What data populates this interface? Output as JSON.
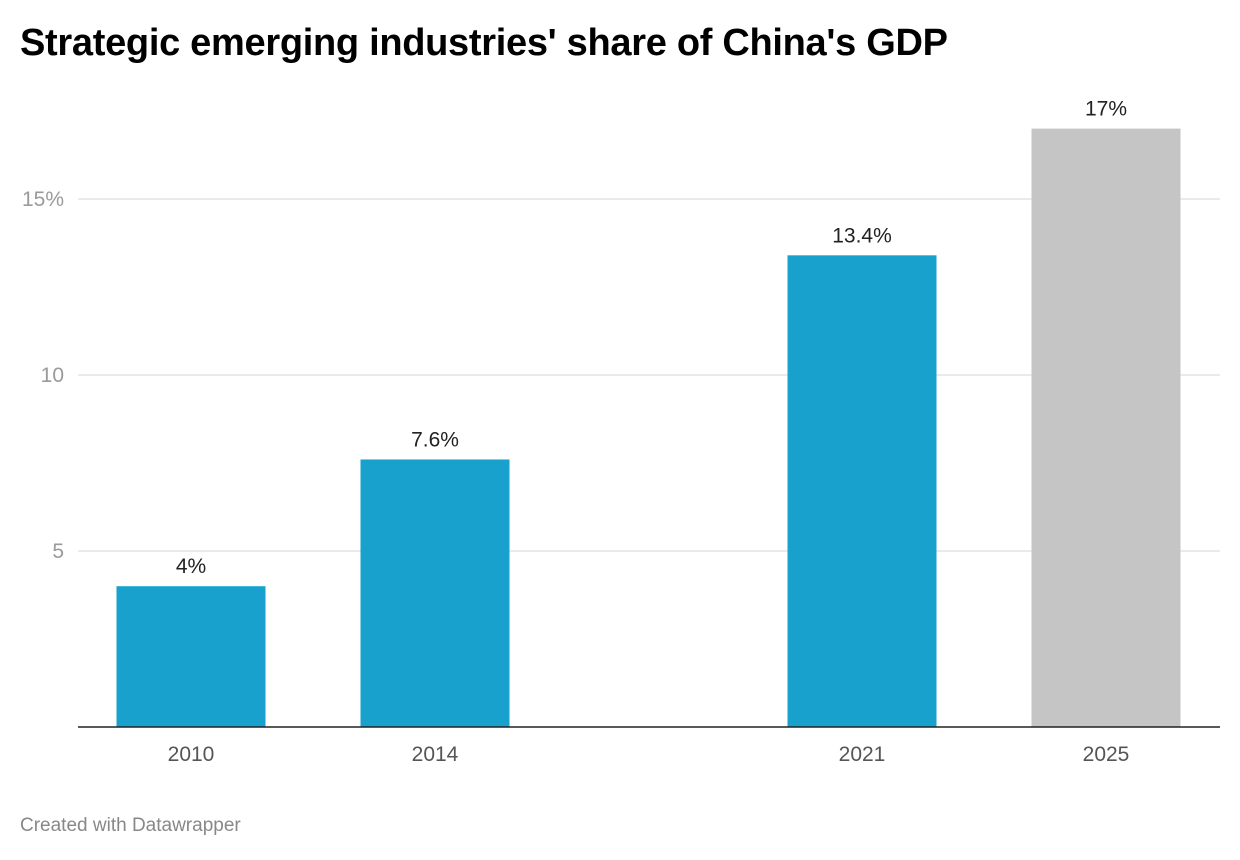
{
  "chart_data": {
    "type": "bar",
    "title": "Strategic emerging industries' share of China's GDP",
    "xlabel": "",
    "ylabel": "",
    "categories": [
      "2010",
      "2014",
      "2021",
      "2025"
    ],
    "values": [
      4,
      7.6,
      13.4,
      17
    ],
    "data_labels": [
      "4%",
      "7.6%",
      "13.4%",
      "17%"
    ],
    "bar_colors": [
      "#18a1cd",
      "#18a1cd",
      "#18a1cd",
      "#c5c5c5"
    ],
    "yticks": [
      5,
      10,
      15
    ],
    "ytick_labels": [
      "5",
      "10",
      "15%"
    ],
    "ylim": [
      0,
      17
    ],
    "grid": true,
    "footer": "Created with Datawrapper"
  }
}
